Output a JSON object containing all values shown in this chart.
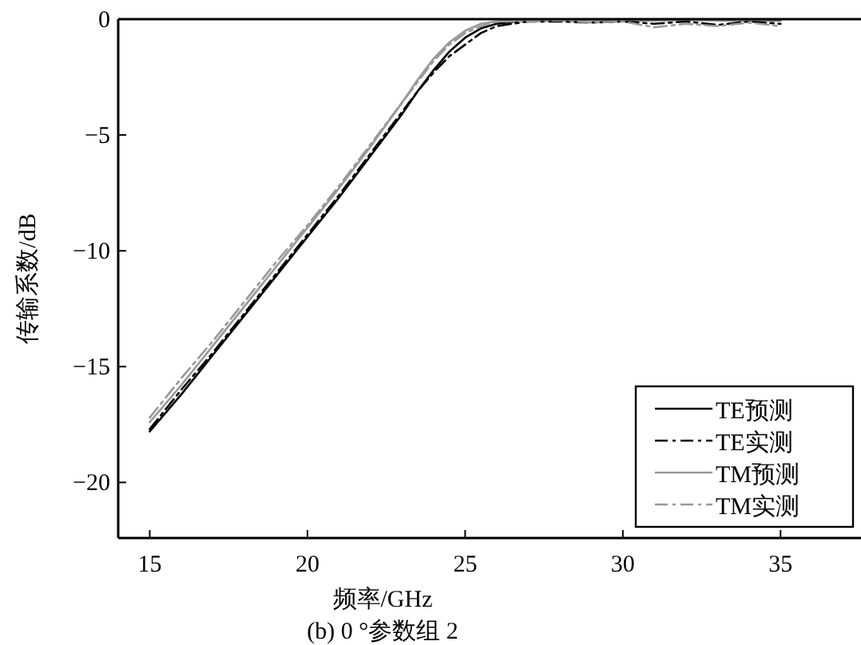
{
  "chart_data": {
    "type": "line",
    "title": "(b) 0 °参数组 2",
    "xlabel": "频率/GHz",
    "ylabel": "传输系数/dB",
    "xlim": [
      14,
      37.5
    ],
    "ylim": [
      -22.4,
      0
    ],
    "xticks": [
      15,
      20,
      25,
      30,
      35
    ],
    "yticks": [
      -20,
      -15,
      -10,
      -5,
      0
    ],
    "grid": false,
    "legend": "bottom right",
    "marker": "none",
    "series": [
      {
        "name": "TE预测",
        "color": "#000000",
        "line_style": "solid",
        "x": [
          15,
          16,
          17,
          18,
          19,
          20,
          21,
          22,
          23,
          23.5,
          24,
          24.5,
          25,
          25.5,
          26,
          27,
          28,
          30,
          32,
          35
        ],
        "values": [
          -17.8,
          -16.2,
          -14.5,
          -12.8,
          -11.1,
          -9.4,
          -7.7,
          -5.9,
          -4.1,
          -3.1,
          -2.2,
          -1.4,
          -0.8,
          -0.4,
          -0.2,
          -0.05,
          -0.02,
          -0.05,
          -0.03,
          -0.05
        ]
      },
      {
        "name": "TE实测",
        "color": "#000000",
        "line_style": "dashdot",
        "x": [
          15,
          16,
          17,
          18,
          19,
          20,
          21,
          22,
          23,
          23.5,
          24,
          24.5,
          25,
          25.5,
          26,
          27,
          28,
          29,
          30,
          31,
          32,
          33,
          34,
          35
        ],
        "values": [
          -17.7,
          -16.0,
          -14.4,
          -12.7,
          -11.0,
          -9.3,
          -7.6,
          -5.8,
          -4.0,
          -3.1,
          -2.3,
          -1.6,
          -1.1,
          -0.6,
          -0.3,
          -0.1,
          -0.1,
          -0.15,
          -0.1,
          -0.2,
          -0.1,
          -0.25,
          -0.1,
          -0.2
        ]
      },
      {
        "name": "TM预测",
        "color": "#999999",
        "line_style": "solid",
        "x": [
          15,
          16,
          17,
          18,
          19,
          20,
          21,
          22,
          23,
          23.5,
          24,
          24.5,
          25,
          25.5,
          26,
          27,
          28,
          30,
          32,
          35
        ],
        "values": [
          -17.4,
          -15.8,
          -14.1,
          -12.4,
          -10.7,
          -9.0,
          -7.3,
          -5.5,
          -3.6,
          -2.6,
          -1.7,
          -1.0,
          -0.5,
          -0.2,
          -0.1,
          -0.02,
          -0.02,
          -0.03,
          -0.02,
          -0.03
        ]
      },
      {
        "name": "TM实测",
        "color": "#999999",
        "line_style": "dashdot",
        "x": [
          15,
          16,
          17,
          18,
          19,
          20,
          21,
          22,
          23,
          23.5,
          24,
          24.5,
          25,
          25.5,
          26,
          27,
          28,
          29,
          30,
          31,
          32,
          33,
          34,
          35
        ],
        "values": [
          -17.2,
          -15.5,
          -13.9,
          -12.2,
          -10.5,
          -8.9,
          -7.2,
          -5.4,
          -3.6,
          -2.7,
          -1.8,
          -1.1,
          -0.6,
          -0.3,
          -0.1,
          -0.1,
          -0.05,
          -0.15,
          -0.1,
          -0.35,
          -0.2,
          -0.3,
          -0.15,
          -0.3
        ]
      }
    ]
  }
}
